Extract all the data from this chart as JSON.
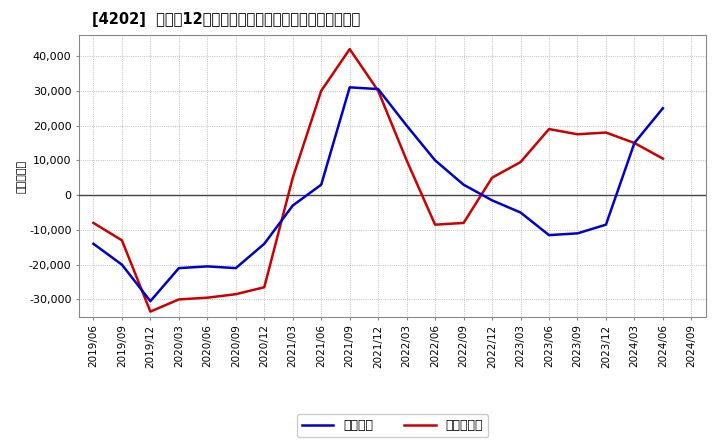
{
  "title": "[4202]  利益だ12か月移動合計の対前年同期増減額の推移",
  "ylabel": "（百万円）",
  "legend_labels": [
    "経常利益",
    "当期純利益"
  ],
  "line_colors": [
    "#0000cc",
    "#cc0000"
  ],
  "background_color": "#ffffff",
  "plot_bg_color": "#ffffff",
  "grid_color": "#aaaaaa",
  "ylim": [
    -35000,
    46000
  ],
  "yticks": [
    -30000,
    -20000,
    -10000,
    0,
    10000,
    20000,
    30000,
    40000
  ],
  "dates": [
    "2019/06",
    "2019/09",
    "2019/12",
    "2020/03",
    "2020/06",
    "2020/09",
    "2020/12",
    "2021/03",
    "2021/06",
    "2021/09",
    "2021/12",
    "2022/03",
    "2022/06",
    "2022/09",
    "2022/12",
    "2023/03",
    "2023/06",
    "2023/09",
    "2023/12",
    "2024/03",
    "2024/06",
    "2024/09"
  ],
  "operating_profit": [
    -14000,
    -20000,
    -30500,
    -21000,
    -20500,
    -21000,
    -14000,
    -3000,
    3000,
    31000,
    30500,
    20000,
    10000,
    3000,
    -1500,
    -5000,
    -11500,
    -11000,
    -8500,
    15000,
    25000,
    null
  ],
  "net_profit": [
    -8000,
    -13000,
    -33500,
    -30000,
    -29500,
    -28500,
    -26500,
    5000,
    30000,
    42000,
    30000,
    10000,
    -8500,
    -8000,
    5000,
    9500,
    19000,
    17500,
    18000,
    15000,
    10500,
    null
  ]
}
